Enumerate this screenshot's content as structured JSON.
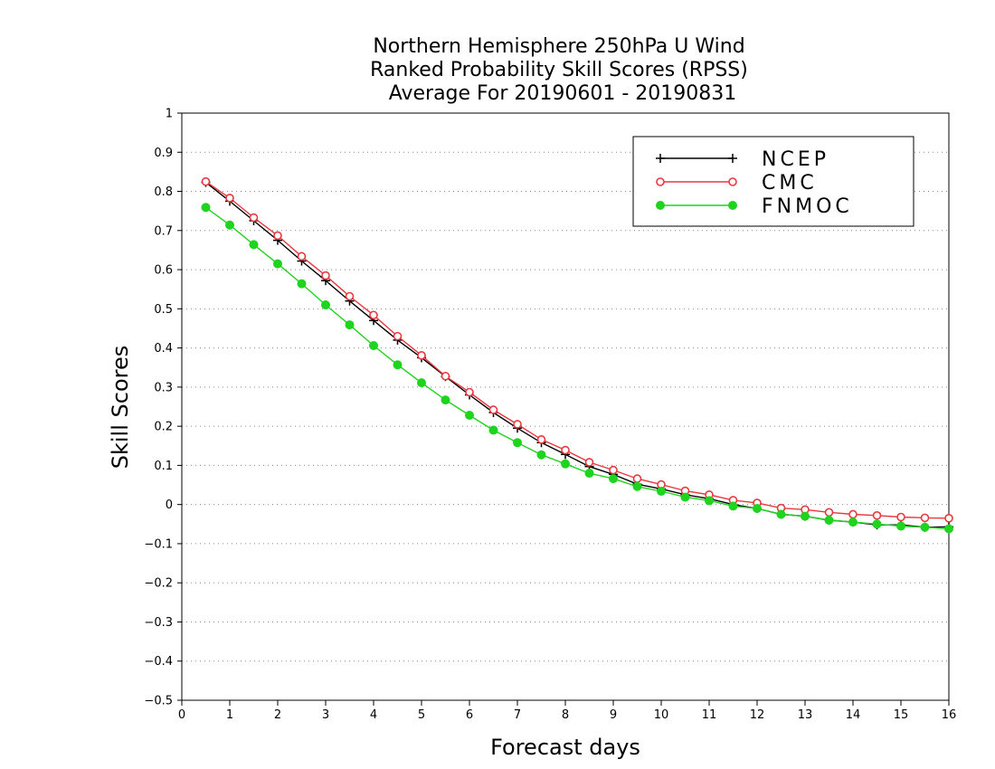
{
  "chart_data": {
    "type": "line",
    "title_lines": [
      "Northern Hemisphere 250hPa U Wind",
      "Ranked Probability Skill Scores (RPSS)",
      "Average For 20190601 - 20190831"
    ],
    "xlabel": "Forecast days",
    "ylabel": "Skill Scores",
    "xlim": [
      0,
      16
    ],
    "ylim": [
      -0.5,
      1
    ],
    "xticks": [
      0,
      1,
      2,
      3,
      4,
      5,
      6,
      7,
      8,
      9,
      10,
      11,
      12,
      13,
      14,
      15,
      16
    ],
    "yticks": [
      -0.5,
      -0.4,
      -0.3,
      -0.2,
      -0.1,
      0,
      0.1,
      0.2,
      0.3,
      0.4,
      0.5,
      0.6,
      0.7,
      0.8,
      0.9,
      1
    ],
    "ytick_labels": [
      "−0.5",
      "−0.4",
      "−0.3",
      "−0.2",
      "−0.1",
      "0",
      "0.1",
      "0.2",
      "0.3",
      "0.4",
      "0.5",
      "0.6",
      "0.7",
      "0.8",
      "0.9",
      "1"
    ],
    "grid": "horizontal dotted",
    "legend_position": "top-right",
    "x": [
      0.5,
      1,
      1.5,
      2,
      2.5,
      3,
      3.5,
      4,
      4.5,
      5,
      5.5,
      6,
      6.5,
      7,
      7.5,
      8,
      8.5,
      9,
      9.5,
      10,
      10.5,
      11,
      11.5,
      12,
      12.5,
      13,
      13.5,
      14,
      14.5,
      15,
      15.5,
      16
    ],
    "series": [
      {
        "name": "NCEP",
        "color": "#000000",
        "marker": "plus",
        "values": [
          0.823,
          0.775,
          0.725,
          0.675,
          0.622,
          0.572,
          0.52,
          0.47,
          0.42,
          0.375,
          0.327,
          0.28,
          0.235,
          0.195,
          0.158,
          0.128,
          0.097,
          0.077,
          0.052,
          0.04,
          0.025,
          0.015,
          0.0,
          -0.01,
          -0.025,
          -0.03,
          -0.04,
          -0.045,
          -0.052,
          -0.052,
          -0.058,
          -0.057
        ]
      },
      {
        "name": "CMC",
        "color": "#e8383d",
        "marker": "open-circle",
        "values": [
          0.825,
          0.783,
          0.733,
          0.687,
          0.634,
          0.585,
          0.532,
          0.484,
          0.43,
          0.381,
          0.328,
          0.287,
          0.242,
          0.205,
          0.166,
          0.139,
          0.108,
          0.088,
          0.066,
          0.051,
          0.035,
          0.025,
          0.011,
          0.004,
          -0.009,
          -0.013,
          -0.02,
          -0.025,
          -0.028,
          -0.032,
          -0.034,
          -0.035
        ]
      },
      {
        "name": "FNMOC",
        "color": "#1ed41e",
        "marker": "filled-circle",
        "values": [
          0.759,
          0.714,
          0.664,
          0.615,
          0.564,
          0.51,
          0.459,
          0.406,
          0.357,
          0.311,
          0.267,
          0.228,
          0.19,
          0.158,
          0.127,
          0.104,
          0.08,
          0.066,
          0.046,
          0.034,
          0.019,
          0.01,
          -0.004,
          -0.01,
          -0.025,
          -0.03,
          -0.04,
          -0.045,
          -0.05,
          -0.055,
          -0.058,
          -0.062
        ]
      }
    ]
  }
}
